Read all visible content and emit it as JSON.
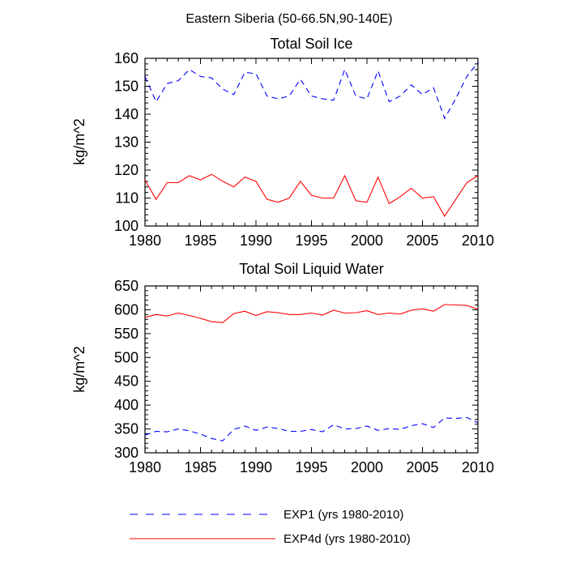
{
  "figure_title": "Eastern Siberia (50-66.5N,90-140E)",
  "chart_data": [
    {
      "type": "line",
      "title": "Total Soil Ice",
      "xlabel": "",
      "ylabel": "kg/m^2",
      "xlim": [
        1980,
        2010
      ],
      "ylim": [
        100,
        160
      ],
      "xticks": [
        1980,
        1985,
        1990,
        1995,
        2000,
        2005,
        2010
      ],
      "yticks": [
        100,
        110,
        120,
        130,
        140,
        150,
        160
      ],
      "x": [
        1980,
        1981,
        1982,
        1983,
        1984,
        1985,
        1986,
        1987,
        1988,
        1989,
        1990,
        1991,
        1992,
        1993,
        1994,
        1995,
        1996,
        1997,
        1998,
        1999,
        2000,
        2001,
        2002,
        2003,
        2004,
        2005,
        2006,
        2007,
        2008,
        2009,
        2010
      ],
      "series": [
        {
          "name": "EXP1 (yrs 1980-2010)",
          "color": "#0000ff",
          "dash": "dashed",
          "values": [
            153.5,
            144.5,
            151,
            152,
            156,
            153.5,
            153,
            149,
            147,
            155,
            154.5,
            146.5,
            145.5,
            146.5,
            152.5,
            146.5,
            145.5,
            145,
            156,
            146.5,
            145.5,
            155.5,
            144.5,
            146.5,
            150.5,
            147,
            149.5,
            138.5,
            145.5,
            153.5,
            158.5
          ]
        },
        {
          "name": "EXP4d (yrs 1980-2010)",
          "color": "#ff0000",
          "dash": "solid",
          "values": [
            116.5,
            109.5,
            115.5,
            115.5,
            118,
            116.5,
            118.5,
            116,
            114,
            117.5,
            116,
            109.5,
            108.5,
            110,
            116,
            111,
            110,
            110,
            118,
            109,
            108.5,
            117.5,
            108,
            110.5,
            113.5,
            110,
            110.5,
            103.5,
            109.5,
            115.5,
            118
          ]
        }
      ]
    },
    {
      "type": "line",
      "title": "Total Soil Liquid Water",
      "xlabel": "",
      "ylabel": "kg/m^2",
      "xlim": [
        1980,
        2010
      ],
      "ylim": [
        300,
        650
      ],
      "xticks": [
        1980,
        1985,
        1990,
        1995,
        2000,
        2005,
        2010
      ],
      "yticks": [
        300,
        350,
        400,
        450,
        500,
        550,
        600,
        650
      ],
      "x": [
        1980,
        1981,
        1982,
        1983,
        1984,
        1985,
        1986,
        1987,
        1988,
        1989,
        1990,
        1991,
        1992,
        1993,
        1994,
        1995,
        1996,
        1997,
        1998,
        1999,
        2000,
        2001,
        2002,
        2003,
        2004,
        2005,
        2006,
        2007,
        2008,
        2009,
        2010
      ],
      "series": [
        {
          "name": "EXP1 (yrs 1980-2010)",
          "color": "#0000ff",
          "dash": "dashed",
          "values": [
            337,
            345,
            344,
            350,
            346,
            339,
            330,
            325,
            349,
            356,
            347,
            354,
            351,
            345,
            345,
            349,
            344,
            359,
            350,
            351,
            356,
            347,
            351,
            349,
            357,
            361,
            353,
            373,
            372,
            374,
            363
          ]
        },
        {
          "name": "EXP4d (yrs 1980-2010)",
          "color": "#ff0000",
          "dash": "solid",
          "values": [
            584,
            590,
            587,
            593,
            588,
            582,
            575,
            573,
            592,
            597,
            588,
            596,
            594,
            590,
            590,
            593,
            589,
            599,
            593,
            594,
            598,
            590,
            593,
            591,
            599,
            602,
            597,
            611,
            610,
            609,
            601
          ]
        }
      ]
    }
  ],
  "legend": [
    {
      "label": "EXP1 (yrs 1980-2010)",
      "color": "#0000ff",
      "dash": "dashed"
    },
    {
      "label": "EXP4d (yrs 1980-2010)",
      "color": "#ff0000",
      "dash": "solid"
    }
  ]
}
